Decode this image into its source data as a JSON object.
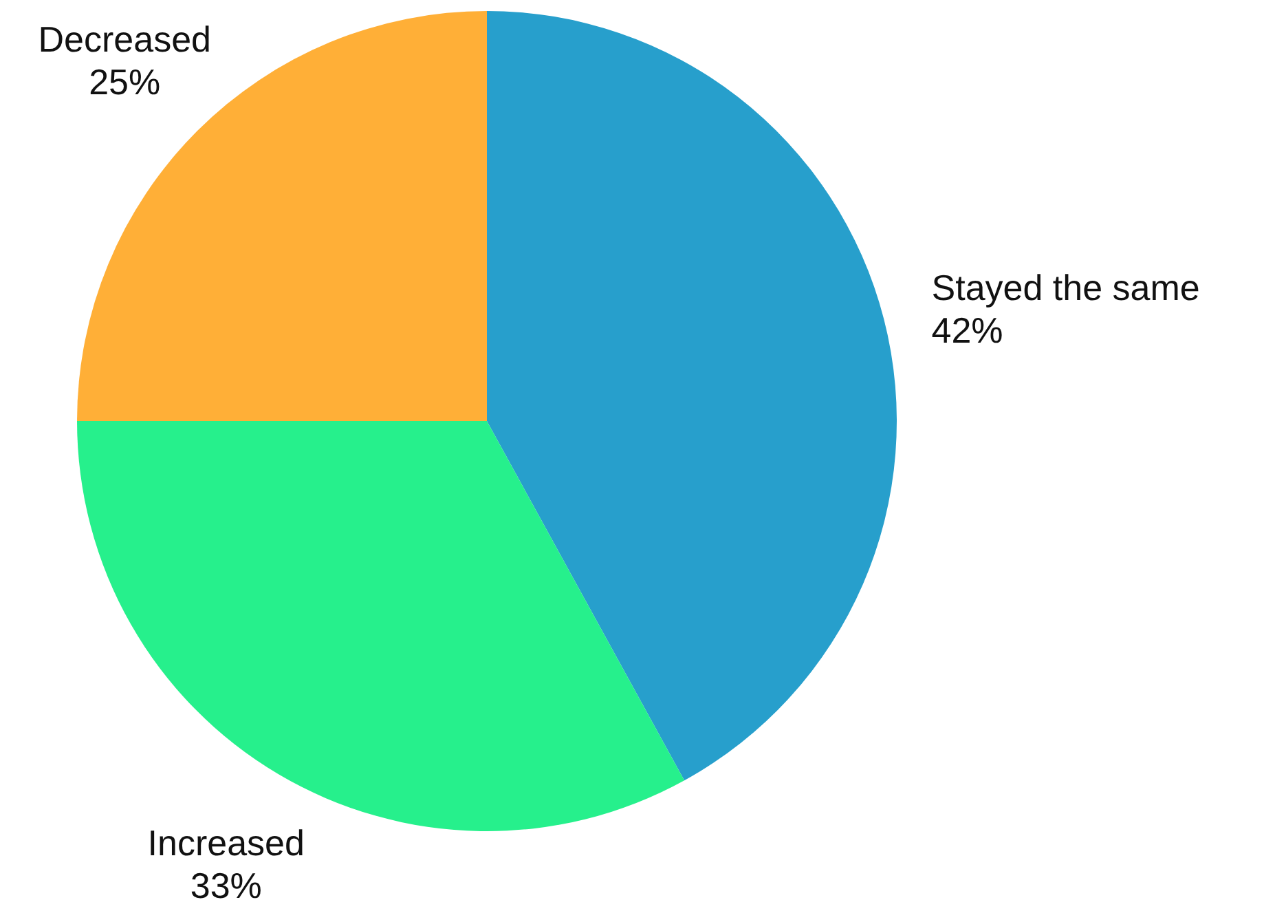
{
  "chart_data": {
    "type": "pie",
    "categories": [
      "Stayed the same",
      "Increased",
      "Decreased"
    ],
    "values": [
      42,
      33,
      25
    ],
    "colors": [
      "#279fcc",
      "#26f08c",
      "#ffaf37"
    ],
    "value_labels": [
      "42%",
      "33%",
      "25%"
    ],
    "legend": false
  }
}
